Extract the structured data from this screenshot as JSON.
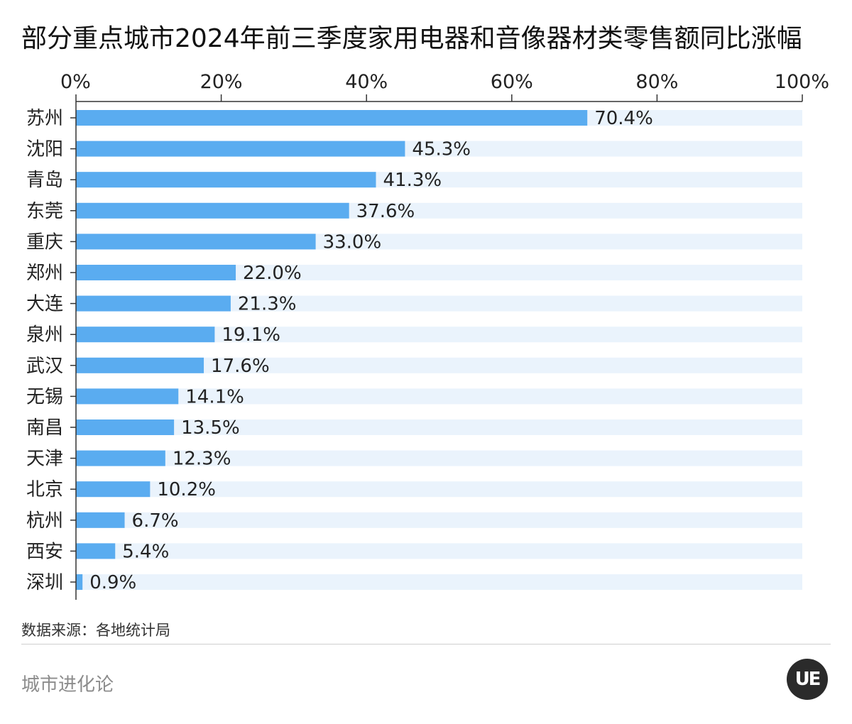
{
  "title": "部分重点城市2024年前三季度家用电器和音像器材类零售额同比涨幅",
  "source": "数据来源：各地统计局",
  "brand": "城市进化论",
  "logo_text": "UE",
  "colors": {
    "bar": "#5aacf0",
    "track": "#eaf3fc",
    "axis": "#333333"
  },
  "chart_data": {
    "type": "bar",
    "orientation": "horizontal",
    "title": "部分重点城市2024年前三季度家用电器和音像器材类零售额同比涨幅",
    "categories": [
      "苏州",
      "沈阳",
      "青岛",
      "东莞",
      "重庆",
      "郑州",
      "大连",
      "泉州",
      "武汉",
      "无锡",
      "南昌",
      "天津",
      "北京",
      "杭州",
      "西安",
      "深圳"
    ],
    "values": [
      70.4,
      45.3,
      41.3,
      37.6,
      33.0,
      22.0,
      21.3,
      19.1,
      17.6,
      14.1,
      13.5,
      12.3,
      10.2,
      6.7,
      5.4,
      0.9
    ],
    "value_labels": [
      "70.4%",
      "45.3%",
      "41.3%",
      "37.6%",
      "33.0%",
      "22.0%",
      "21.3%",
      "19.1%",
      "17.6%",
      "14.1%",
      "13.5%",
      "12.3%",
      "10.2%",
      "6.7%",
      "5.4%",
      "0.9%"
    ],
    "xlim": [
      0,
      100
    ],
    "x_ticks": [
      "0%",
      "20%",
      "40%",
      "60%",
      "80%",
      "100%"
    ],
    "axis_position": "top",
    "grid": false,
    "legend": "none"
  }
}
